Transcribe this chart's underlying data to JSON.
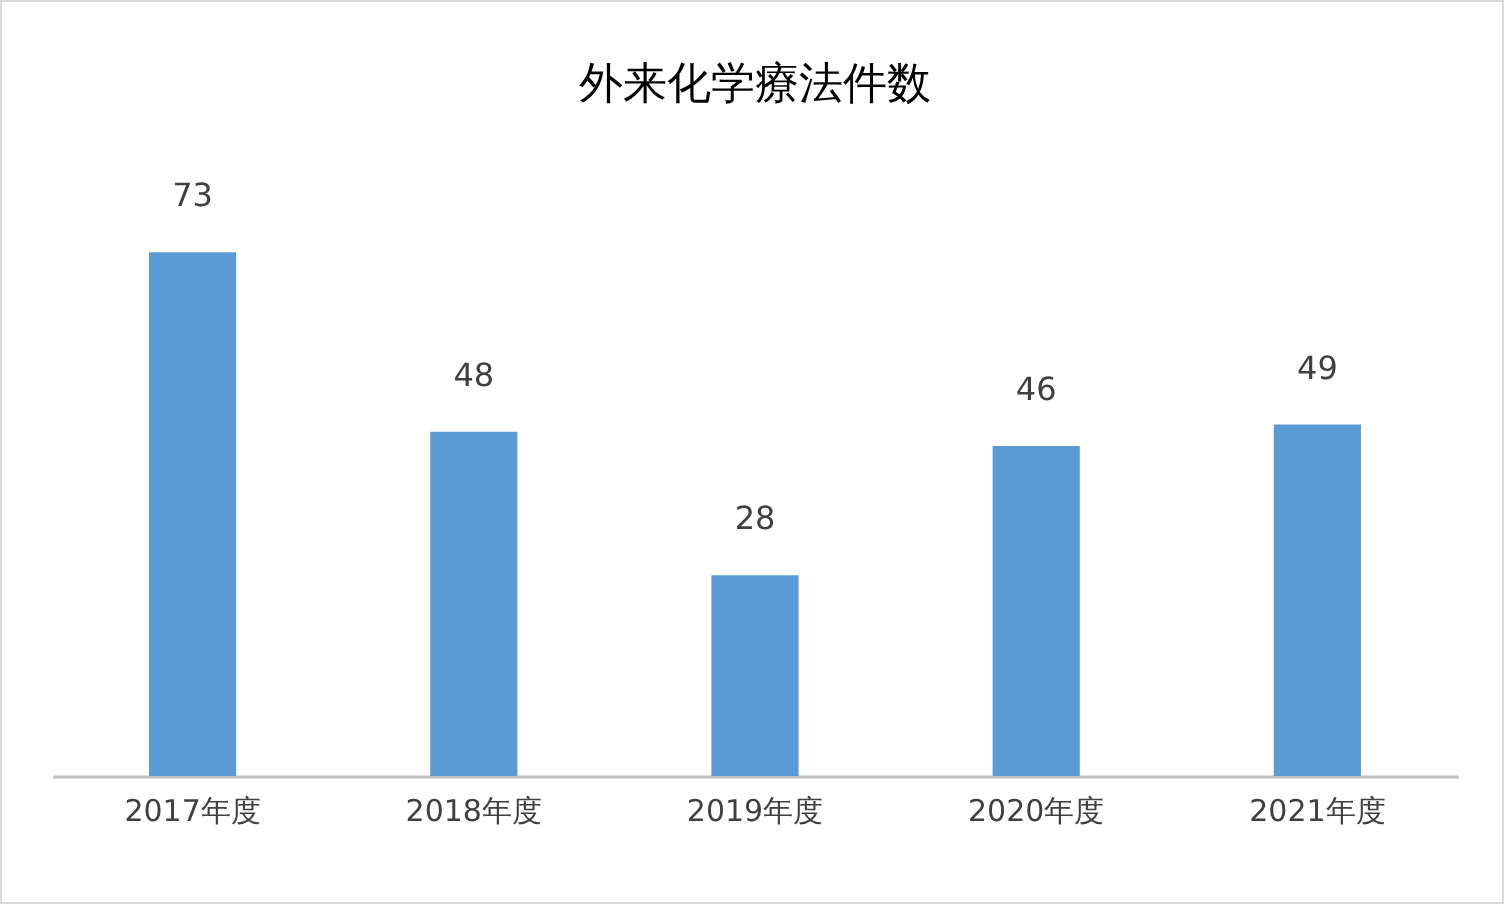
{
  "chart_data": {
    "type": "bar",
    "title": "外来化学療法件数",
    "categories": [
      "2017年度",
      "2018年度",
      "2019年度",
      "2020年度",
      "2021年度"
    ],
    "values": [
      73,
      48,
      28,
      46,
      49
    ],
    "color": "#5b9bd5",
    "data_labels": true,
    "tick_labels": "x"
  }
}
